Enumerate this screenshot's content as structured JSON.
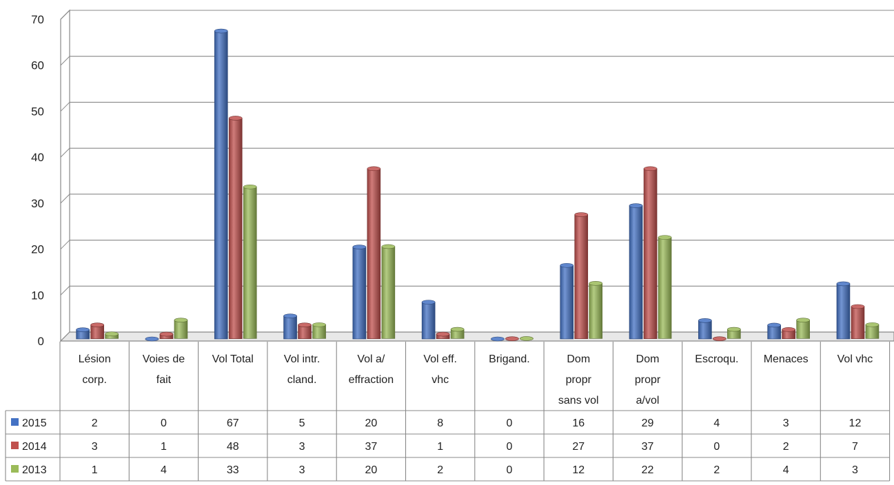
{
  "chart_data": {
    "type": "bar",
    "title": "",
    "xlabel": "",
    "ylabel": "",
    "ylim": [
      0,
      70
    ],
    "y_ticks": [
      "0",
      "10",
      "20",
      "30",
      "40",
      "50",
      "60",
      "70"
    ],
    "grid": true,
    "legend": "data-table-left",
    "categories": [
      [
        "Lésion",
        "corp."
      ],
      [
        "Voies de",
        "fait"
      ],
      [
        "Vol Total"
      ],
      [
        "Vol intr.",
        "cland."
      ],
      [
        "Vol a/",
        "effraction"
      ],
      [
        "Vol eff.",
        "vhc"
      ],
      [
        "Brigand."
      ],
      [
        "Dom",
        "propr",
        "sans vol"
      ],
      [
        "Dom",
        "propr",
        "a/vol"
      ],
      [
        "Escroqu."
      ],
      [
        "Menaces"
      ],
      [
        "Vol vhc"
      ]
    ],
    "series": [
      {
        "name": "2015",
        "color": "#4472c4",
        "values": [
          2,
          0,
          67,
          5,
          20,
          8,
          0,
          16,
          29,
          4,
          3,
          12
        ],
        "labels": [
          "2",
          "0",
          "67",
          "5",
          "20",
          "8",
          "0",
          "16",
          "29",
          "4",
          "3",
          "12"
        ]
      },
      {
        "name": "2014",
        "color": "#c0504d",
        "values": [
          3,
          1,
          48,
          3,
          37,
          1,
          0,
          27,
          37,
          0,
          2,
          7
        ],
        "labels": [
          "3",
          "1",
          "48",
          "3",
          "37",
          "1",
          "0",
          "27",
          "37",
          "0",
          "2",
          "7"
        ]
      },
      {
        "name": "2013",
        "color": "#9bbb59",
        "values": [
          1,
          4,
          33,
          3,
          20,
          2,
          0,
          12,
          22,
          2,
          4,
          3
        ],
        "labels": [
          "1",
          "4",
          "33",
          "3",
          "20",
          "2",
          "0",
          "12",
          "22",
          "2",
          "4",
          "3"
        ]
      }
    ]
  }
}
